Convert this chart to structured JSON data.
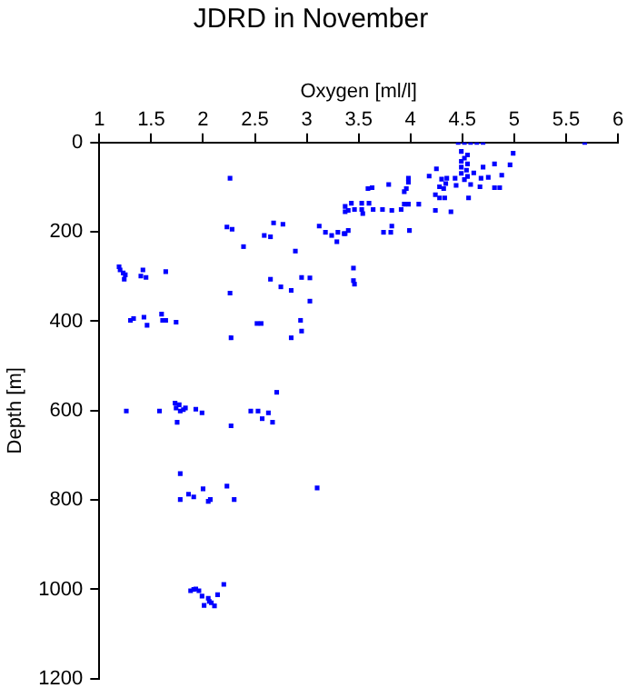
{
  "chart_data": {
    "type": "scatter",
    "title": "JDRD in November",
    "xlabel": "Oxygen [ml/l]",
    "ylabel": "Depth [m]",
    "xlim": [
      1,
      6
    ],
    "xticks": [
      1,
      1.5,
      2,
      2.5,
      3,
      3.5,
      4,
      4.5,
      5,
      5.5,
      6
    ],
    "ylim": [
      1200,
      0
    ],
    "yticks": [
      0,
      200,
      400,
      600,
      800,
      1000,
      1200
    ],
    "marker": "square",
    "legend": false,
    "grid": false,
    "series": [
      {
        "color": "#0000ff",
        "x": [
          5.68,
          4.7,
          4.46,
          4.52,
          4.58,
          4.64,
          4.99,
          4.49,
          4.55,
          4.52,
          4.49,
          4.55,
          4.49,
          4.54,
          4.49,
          4.55,
          4.52,
          4.81,
          4.96,
          4.88,
          4.75,
          4.7,
          4.61,
          4.68,
          4.58,
          4.67,
          4.81,
          4.86,
          4.56,
          4.43,
          4.44,
          4.35,
          4.25,
          4.18,
          4.3,
          4.28,
          4.32,
          4.34,
          4.24,
          4.28,
          4.33,
          4.24,
          4.39,
          3.98,
          3.98,
          3.96,
          3.94,
          3.79,
          3.63,
          3.59,
          3.98,
          4.08,
          3.94,
          3.91,
          3.82,
          3.73,
          3.64,
          3.53,
          3.54,
          3.46,
          3.37,
          3.4,
          3.43,
          3.6,
          3.53,
          3.37,
          3.12,
          3.18,
          3.24,
          3.29,
          3.3,
          3.36,
          3.4,
          3.37,
          3.74,
          3.82,
          3.81,
          3.99,
          2.68,
          2.77,
          2.59,
          2.65,
          2.39,
          2.89,
          2.26,
          2.23,
          2.28,
          1.19,
          1.2,
          1.23,
          1.25,
          1.24,
          1.42,
          1.4,
          1.45,
          1.64,
          2.26,
          2.65,
          2.75,
          2.85,
          2.95,
          3.03,
          3.03,
          3.45,
          3.45,
          3.46,
          1.3,
          1.33,
          1.43,
          1.46,
          1.6,
          1.61,
          1.64,
          1.74,
          2.27,
          2.52,
          2.56,
          2.94,
          2.95,
          2.85,
          1.26,
          1.58,
          1.73,
          1.74,
          1.77,
          1.78,
          1.83,
          1.81,
          1.75,
          1.93,
          1.99,
          2.27,
          2.46,
          2.53,
          2.57,
          2.63,
          2.67,
          2.71,
          1.78,
          1.78,
          1.86,
          1.91,
          2.0,
          2.07,
          2.23,
          2.3,
          3.1,
          2.05,
          1.88,
          1.91,
          1.93,
          1.96,
          1.99,
          2.01,
          2.05,
          2.06,
          2.08,
          2.11,
          2.14,
          2.2
        ],
        "values": [
          0,
          0,
          0,
          0,
          0,
          0,
          24,
          20,
          28,
          35,
          42,
          48,
          55,
          62,
          69,
          76,
          83,
          48,
          50,
          73,
          78,
          55,
          68,
          80,
          94,
          99,
          101,
          101,
          124,
          80,
          96,
          80,
          59,
          75,
          82,
          99,
          103,
          92,
          117,
          124,
          124,
          152,
          155,
          80,
          89,
          103,
          110,
          94,
          101,
          103,
          138,
          138,
          138,
          150,
          152,
          150,
          150,
          150,
          159,
          150,
          143,
          152,
          136,
          136,
          136,
          155,
          187,
          201,
          208,
          222,
          201,
          204,
          197,
          204,
          201,
          187,
          201,
          197,
          180,
          183,
          208,
          211,
          233,
          243,
          80,
          189,
          194,
          278,
          285,
          292,
          296,
          306,
          285,
          299,
          302,
          289,
          337,
          306,
          323,
          331,
          302,
          303,
          355,
          281,
          309,
          317,
          398,
          394,
          391,
          409,
          384,
          398,
          398,
          402,
          437,
          405,
          405,
          398,
          422,
          437,
          601,
          601,
          583,
          594,
          587,
          601,
          594,
          598,
          626,
          597,
          605,
          634,
          601,
          601,
          618,
          605,
          626,
          559,
          741,
          799,
          787,
          793,
          775,
          799,
          769,
          799,
          773,
          803,
          1003,
          1000,
          999,
          1003,
          1015,
          1036,
          1020,
          1027,
          1030,
          1037,
          1012,
          989
        ]
      }
    ]
  }
}
